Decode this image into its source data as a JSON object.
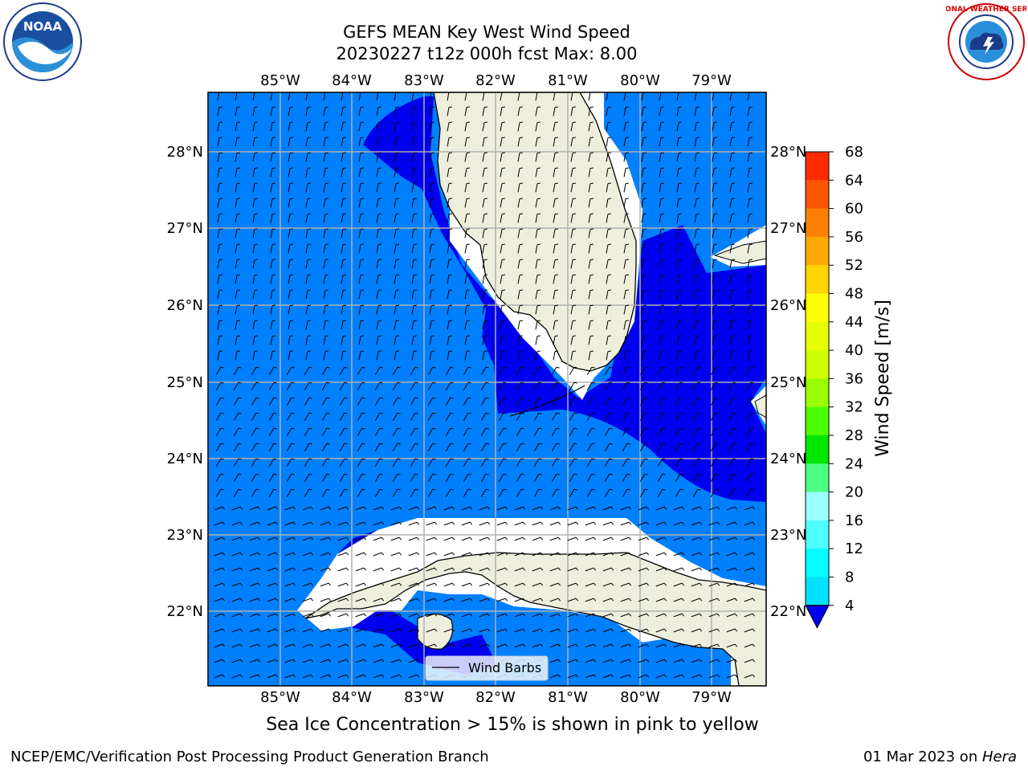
{
  "title": {
    "line1": "GEFS MEAN Key West Wind Speed",
    "line2": "20230227 t12z 000h fcst   Max: 8.00"
  },
  "map": {
    "lon_labels": [
      "85°W",
      "84°W",
      "83°W",
      "82°W",
      "81°W",
      "80°W",
      "79°W"
    ],
    "lat_labels": [
      "28°N",
      "27°N",
      "26°N",
      "25°N",
      "24°N",
      "23°N",
      "22°N"
    ],
    "legend_label": "Wind Barbs",
    "colors": {
      "land": "#eeeedd",
      "ocean_4_8": "#0080ff",
      "ocean_lt4": "#0000ee",
      "grid": "#b0b0b0"
    }
  },
  "colorbar": {
    "label": "Wind Speed [m/s]",
    "ticks": [
      "68",
      "64",
      "60",
      "56",
      "52",
      "48",
      "44",
      "40",
      "36",
      "32",
      "28",
      "24",
      "20",
      "16",
      "12",
      "8",
      "4"
    ],
    "colors": [
      "#ff0000",
      "#ff2a00",
      "#ff5500",
      "#ff8000",
      "#ffaa00",
      "#ffd400",
      "#ffff00",
      "#e6ff00",
      "#ccff00",
      "#99ff00",
      "#4cff00",
      "#00e600",
      "#4dff80",
      "#99ffff",
      "#4dffff",
      "#00ffff",
      "#00e0ff",
      "#0080ff",
      "#0000ee"
    ]
  },
  "caption": "Sea Ice Concentration > 15% is shown in pink to yellow",
  "footer": {
    "left": "NCEP/EMC/Verification Post Processing Product Generation Branch",
    "right_date": "01 Mar 2023 on ",
    "right_host": "Hera"
  },
  "logos": {
    "noaa": "NOAA",
    "nws": "NATIONAL WEATHER SERVICE"
  }
}
